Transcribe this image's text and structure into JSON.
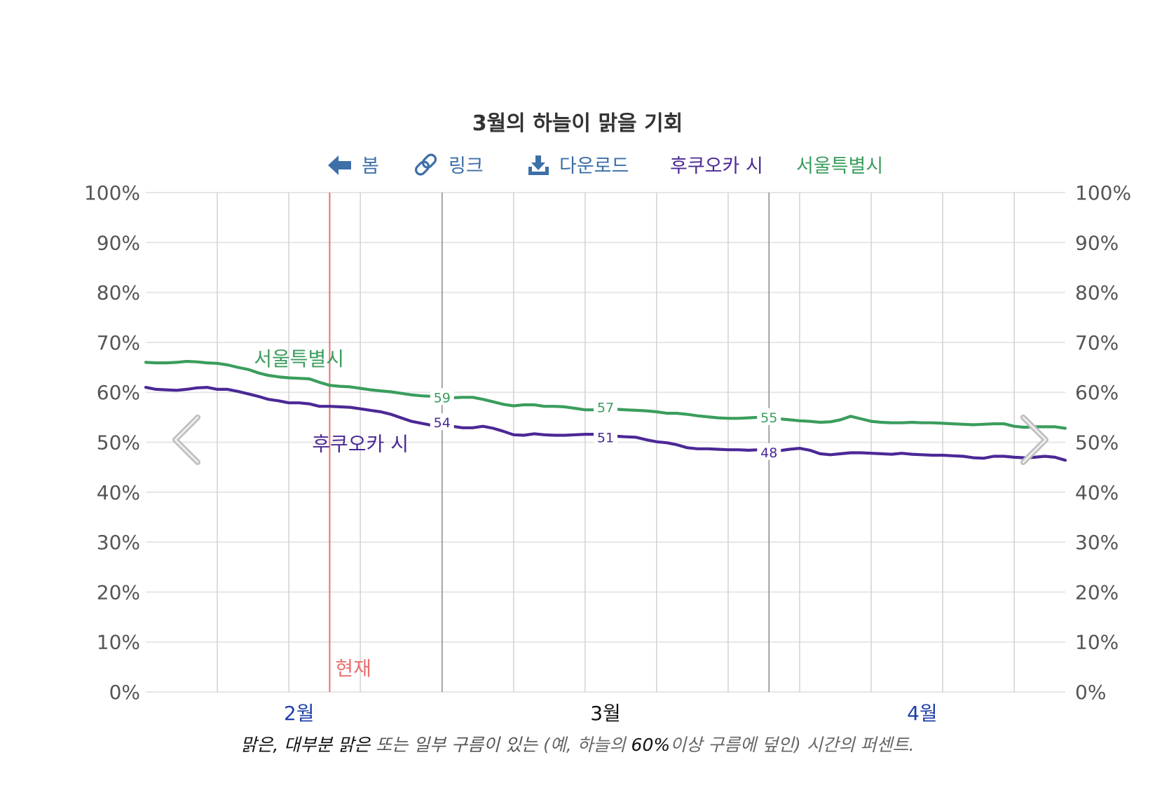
{
  "header": {
    "title": "3월의 하늘이 맑을 기회",
    "nav": {
      "home_label": "봄",
      "link_label": "링크",
      "download_label": "다운로드"
    },
    "legend": [
      "후쿠오카 시",
      "서울특별시"
    ]
  },
  "icons": {
    "home": "left-arrow-icon",
    "link": "chain-link-icon",
    "download": "download-icon",
    "prev": "chevron-left-icon",
    "next": "chevron-right-icon"
  },
  "colors": {
    "link_blue": "#3d6fa8",
    "fukuoka": "#4b2896",
    "seoul": "#3a9d5d",
    "now_line": "#e8706f",
    "month_blue": "#1f3fa8",
    "month_current": "#111111",
    "grid": "#e6e6e6",
    "vgrid": "#d2d2d2",
    "period_line": "#8a8a8a"
  },
  "now_label": "현재",
  "caption": {
    "part1": "맑은, 대부분 맑은",
    "part2": " 또는 일부 구름이 있는",
    "part3": " (예, 하늘의",
    "part4": " 60%",
    "part5": "이상 구름에 덮인) 시간의 퍼센트."
  },
  "chart_data": {
    "type": "line",
    "title": "3월의 하늘이 맑을 기회",
    "y_unit": "%",
    "ylim": [
      0,
      100
    ],
    "y_ticks": [
      "0%",
      "10%",
      "20%",
      "30%",
      "40%",
      "50%",
      "60%",
      "70%",
      "80%",
      "90%",
      "100%"
    ],
    "x_domain_day": [
      1,
      91
    ],
    "months": [
      {
        "label": "2월",
        "day": 16,
        "current": false
      },
      {
        "label": "3월",
        "day": 46,
        "current": true
      },
      {
        "label": "4월",
        "day": 77,
        "current": false
      }
    ],
    "now_day": 19,
    "period_lines_day": [
      30,
      62
    ],
    "week_lines_day": [
      8,
      15,
      22,
      30,
      37,
      44,
      51,
      58,
      65,
      72,
      79,
      86
    ],
    "series": [
      {
        "name": "후쿠오카 시",
        "key": "fukuoka",
        "x": [
          1,
          2,
          3,
          4,
          5,
          6,
          7,
          8,
          9,
          10,
          11,
          12,
          13,
          14,
          15,
          16,
          17,
          18,
          19,
          20,
          21,
          22,
          23,
          24,
          25,
          26,
          27,
          28,
          29,
          30,
          31,
          32,
          33,
          34,
          35,
          36,
          37,
          38,
          39,
          40,
          41,
          42,
          43,
          44,
          45,
          46,
          47,
          48,
          49,
          50,
          51,
          52,
          53,
          54,
          55,
          56,
          57,
          58,
          59,
          60,
          61,
          62,
          63,
          64,
          65,
          66,
          67,
          68,
          69,
          70,
          71,
          72,
          73,
          74,
          75,
          76,
          77,
          78,
          79,
          80,
          81,
          82,
          83,
          84,
          85,
          86,
          87,
          88,
          89,
          90,
          91
        ],
        "values": [
          61,
          60.6,
          60.5,
          60.4,
          60.6,
          60.9,
          61,
          60.6,
          60.6,
          60.2,
          59.7,
          59.2,
          58.6,
          58.3,
          57.9,
          57.9,
          57.7,
          57.2,
          57.2,
          57.1,
          57,
          56.7,
          56.4,
          56.1,
          55.6,
          54.9,
          54.2,
          53.8,
          53.4,
          53.5,
          53.2,
          52.9,
          52.9,
          53.2,
          52.8,
          52.2,
          51.5,
          51.4,
          51.7,
          51.5,
          51.4,
          51.4,
          51.5,
          51.6,
          51.6,
          51.4,
          51.2,
          51.1,
          51,
          50.5,
          50.1,
          49.9,
          49.5,
          48.9,
          48.7,
          48.7,
          48.6,
          48.5,
          48.5,
          48.4,
          48.5,
          48.3,
          48.3,
          48.6,
          48.8,
          48.4,
          47.7,
          47.5,
          47.7,
          47.9,
          47.9,
          47.8,
          47.7,
          47.6,
          47.8,
          47.6,
          47.5,
          47.4,
          47.4,
          47.3,
          47.2,
          46.9,
          46.8,
          47.2,
          47.2,
          47,
          46.9,
          47,
          47.2,
          47,
          46.4
        ],
        "point_labels": [
          {
            "day": 30,
            "value": 54,
            "text": "54"
          },
          {
            "day": 46,
            "value": 51,
            "text": "51"
          },
          {
            "day": 62,
            "value": 48,
            "text": "48"
          }
        ],
        "series_label": {
          "text": "후쿠오카 시",
          "day": 22
        }
      },
      {
        "name": "서울특별시",
        "key": "seoul",
        "x": [
          1,
          2,
          3,
          4,
          5,
          6,
          7,
          8,
          9,
          10,
          11,
          12,
          13,
          14,
          15,
          16,
          17,
          18,
          19,
          20,
          21,
          22,
          23,
          24,
          25,
          26,
          27,
          28,
          29,
          30,
          31,
          32,
          33,
          34,
          35,
          36,
          37,
          38,
          39,
          40,
          41,
          42,
          43,
          44,
          45,
          46,
          47,
          48,
          49,
          50,
          51,
          52,
          53,
          54,
          55,
          56,
          57,
          58,
          59,
          60,
          61,
          62,
          63,
          64,
          65,
          66,
          67,
          68,
          69,
          70,
          71,
          72,
          73,
          74,
          75,
          76,
          77,
          78,
          79,
          80,
          81,
          82,
          83,
          84,
          85,
          86,
          87,
          88,
          89,
          90,
          91
        ],
        "values": [
          66,
          65.9,
          65.9,
          66,
          66.2,
          66.1,
          65.9,
          65.8,
          65.5,
          65,
          64.6,
          63.9,
          63.4,
          63.1,
          62.9,
          62.8,
          62.7,
          62,
          61.4,
          61.2,
          61.1,
          60.8,
          60.5,
          60.3,
          60.1,
          59.8,
          59.5,
          59.3,
          59.2,
          59,
          58.9,
          59,
          59,
          58.6,
          58.1,
          57.6,
          57.3,
          57.5,
          57.5,
          57.2,
          57.2,
          57.1,
          56.8,
          56.5,
          56.5,
          57,
          56.6,
          56.5,
          56.4,
          56.3,
          56.1,
          55.8,
          55.8,
          55.6,
          55.3,
          55.1,
          54.9,
          54.8,
          54.8,
          54.9,
          55,
          55,
          54.7,
          54.5,
          54.3,
          54.2,
          54,
          54.1,
          54.5,
          55.2,
          54.7,
          54.2,
          54,
          53.9,
          53.9,
          54,
          53.9,
          53.9,
          53.8,
          53.7,
          53.6,
          53.5,
          53.6,
          53.7,
          53.7,
          53.2,
          53,
          53.1,
          53.1,
          53.1,
          52.8
        ],
        "point_labels": [
          {
            "day": 30,
            "value": 59,
            "text": "59"
          },
          {
            "day": 46,
            "value": 57,
            "text": "57"
          },
          {
            "day": 62,
            "value": 55,
            "text": "55"
          }
        ],
        "series_label": {
          "text": "서울특별시",
          "day": 16
        }
      }
    ]
  }
}
